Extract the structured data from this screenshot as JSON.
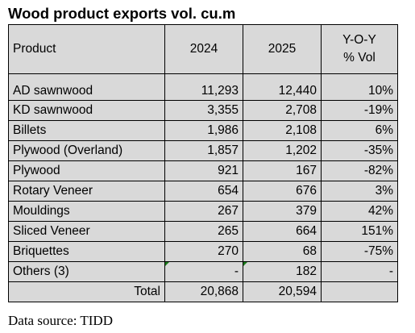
{
  "title": "Wood product exports vol. cu.m",
  "headers": {
    "product": "Product",
    "y2024": "2024",
    "y2025": "2025",
    "yoy_line1": "Y-O-Y",
    "yoy_line2": "% Vol"
  },
  "rows": [
    {
      "product": "AD sawnwood",
      "v2024": "11,293",
      "v2025": "12,440",
      "yoy": "10%"
    },
    {
      "product": "KD sawnwood",
      "v2024": "3,355",
      "v2025": "2,708",
      "yoy": "-19%"
    },
    {
      "product": "Billets",
      "v2024": "1,986",
      "v2025": "2,108",
      "yoy": "6%"
    },
    {
      "product": "Plywood (Overland)",
      "v2024": "1,857",
      "v2025": "1,202",
      "yoy": "-35%"
    },
    {
      "product": "Plywood",
      "v2024": "921",
      "v2025": "167",
      "yoy": "-82%"
    },
    {
      "product": "Rotary Veneer",
      "v2024": "654",
      "v2025": "676",
      "yoy": "3%"
    },
    {
      "product": "Mouldings",
      "v2024": "267",
      "v2025": "379",
      "yoy": "42%"
    },
    {
      "product": "Sliced Veneer",
      "v2024": "265",
      "v2025": "664",
      "yoy": "151%"
    },
    {
      "product": "Briquettes",
      "v2024": "270",
      "v2025": "68",
      "yoy": "-75%"
    },
    {
      "product": "Others (3)",
      "v2024": "-",
      "v2025": "182",
      "yoy": "-"
    }
  ],
  "total": {
    "label": "Total",
    "v2024": "20,868",
    "v2025": "20,594"
  },
  "source": "Data source: TIDD"
}
